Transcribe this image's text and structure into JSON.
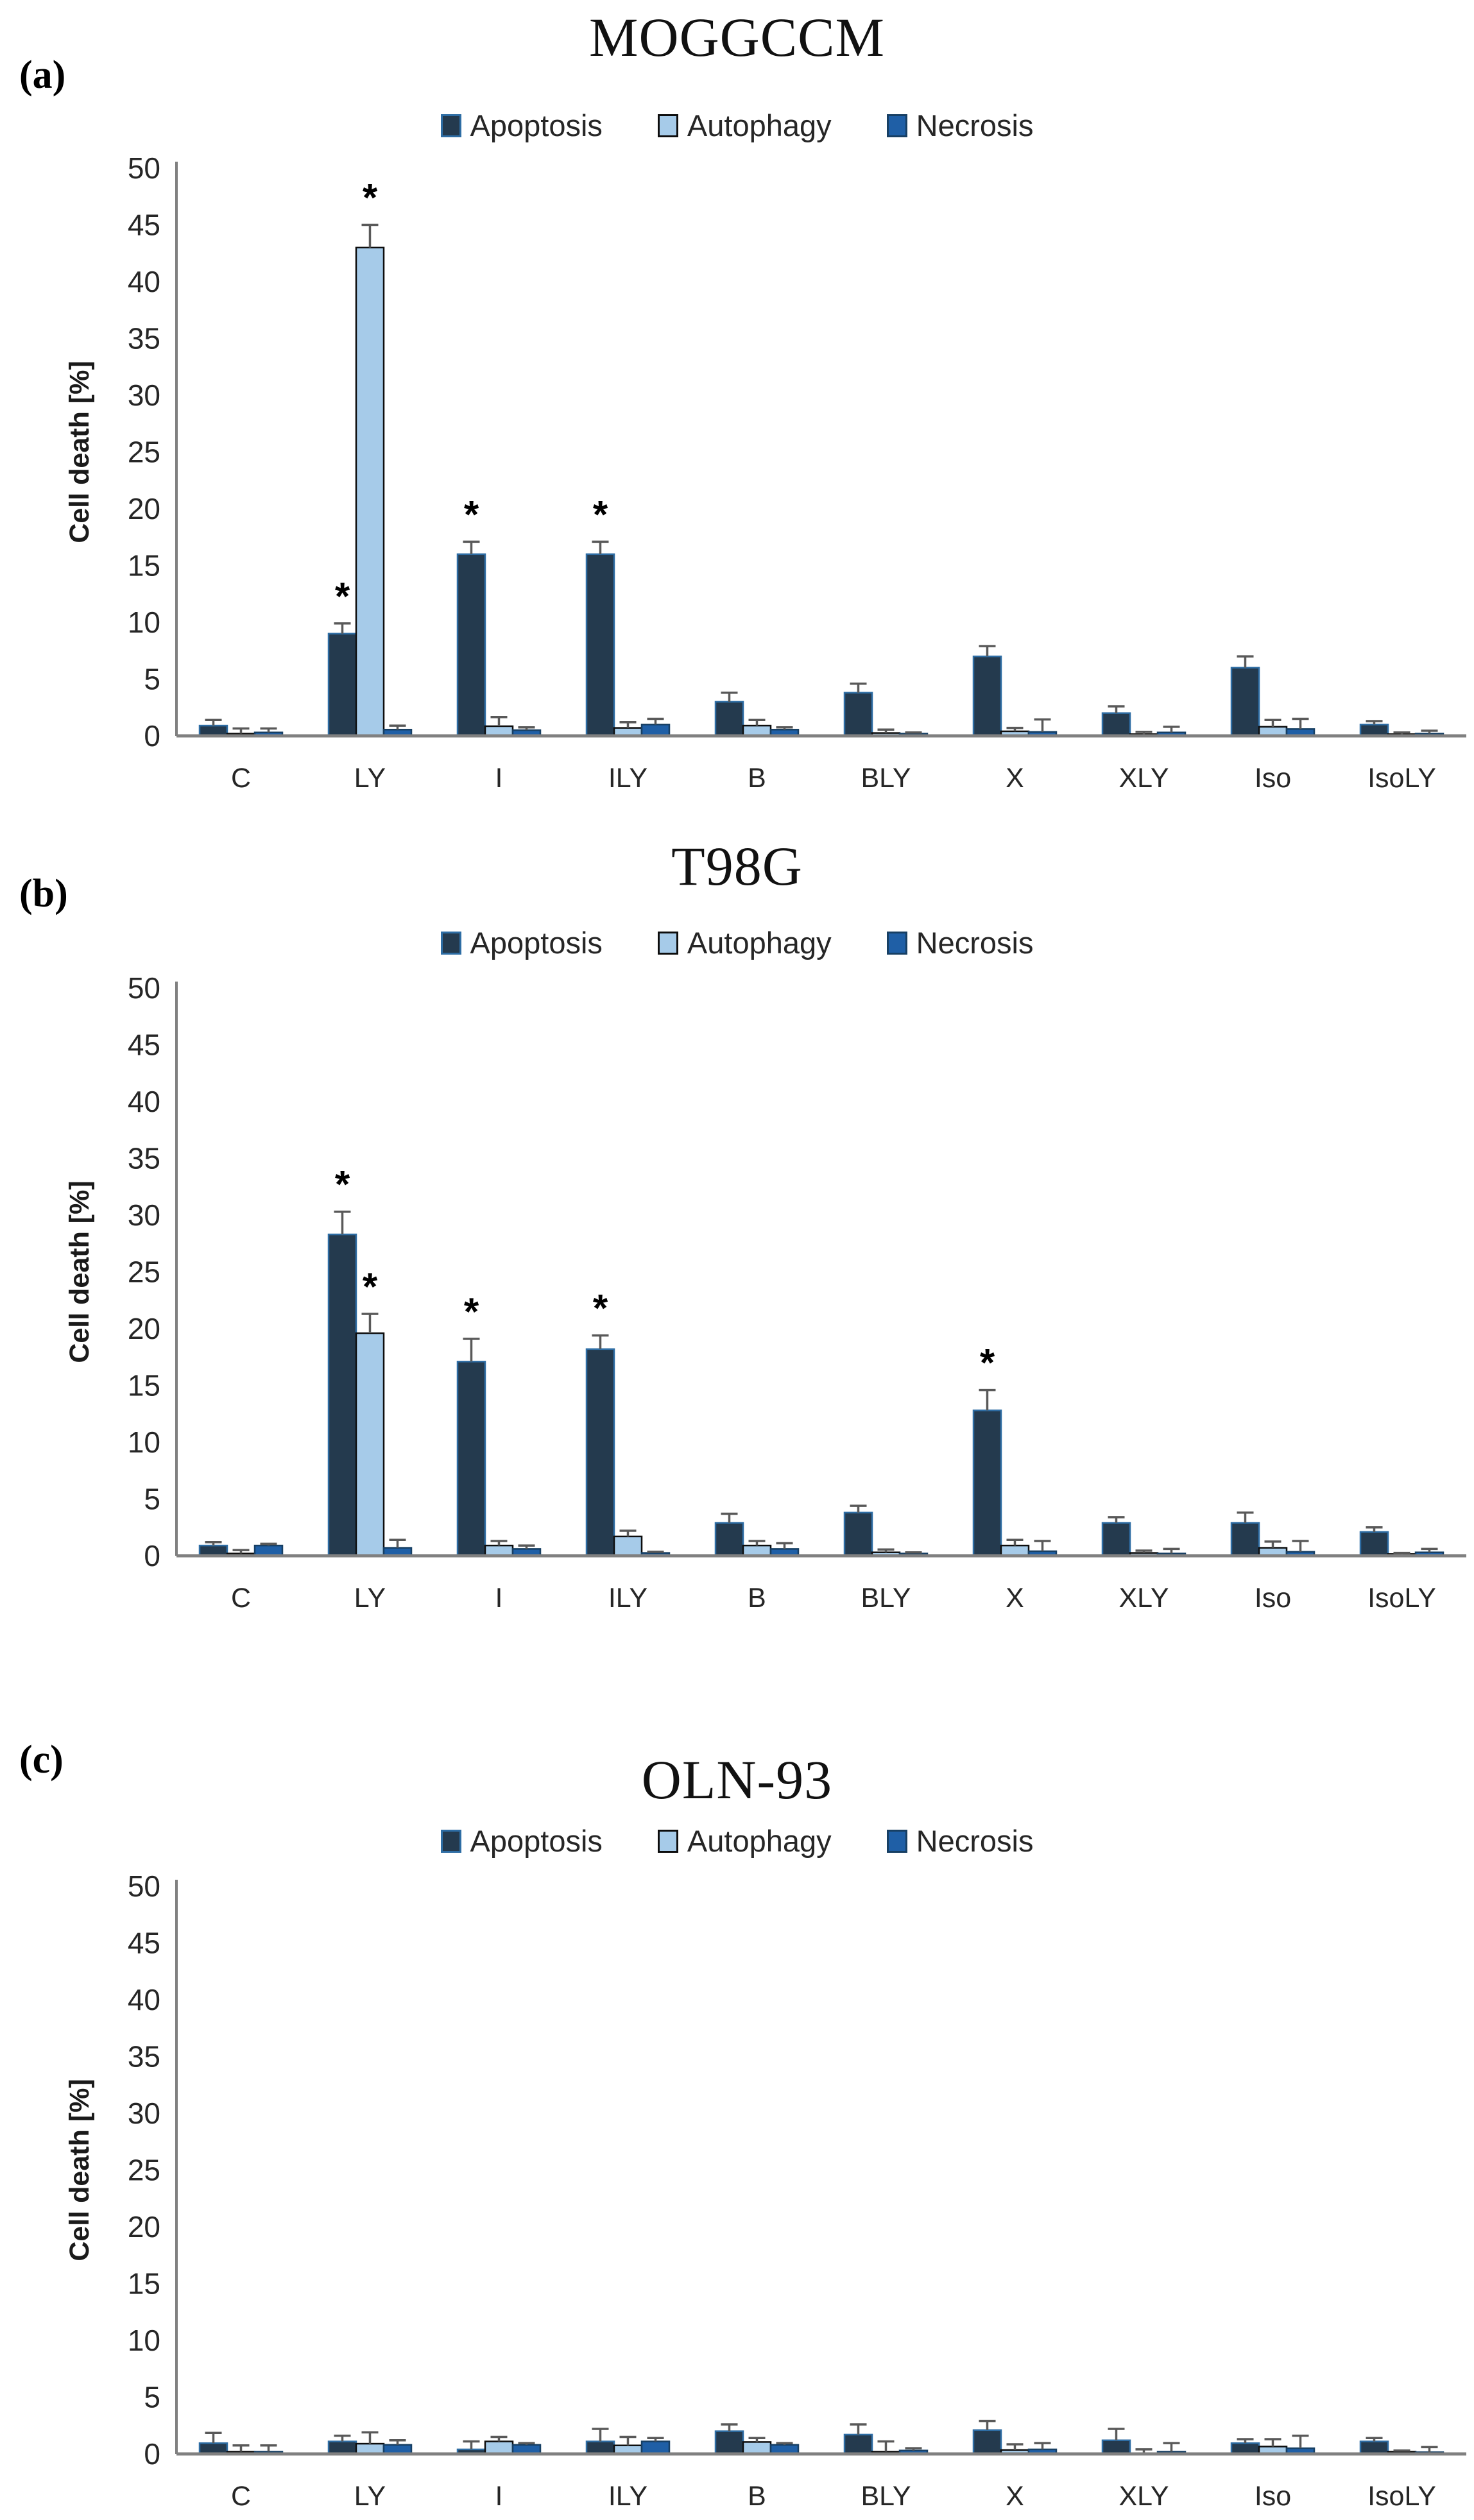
{
  "figure": {
    "kind": "three-panel bar figure",
    "significance_symbol": "*",
    "panel_labels": [
      "(a)",
      "(b)",
      "(c)"
    ]
  },
  "colors": {
    "apoptosis_fill": "#243a4e",
    "apoptosis_border": "#2e6da4",
    "autophagy_fill": "#a6cbe9",
    "autophagy_border": "#0d0d0d",
    "necrosis_fill": "#1f5fa6",
    "necrosis_border": "#173f63",
    "axis": "#808080",
    "error_bar": "#595959",
    "text": "#262626"
  },
  "chart_data": [
    {
      "panel_label": "(a)",
      "type": "bar",
      "title": "MOGGCCM",
      "ylabel": "Cell death [%]",
      "ylim": [
        0,
        50
      ],
      "ytick_step": 5,
      "yticks": [
        0,
        5,
        10,
        15,
        20,
        25,
        30,
        35,
        40,
        45,
        50
      ],
      "grid": false,
      "legend_position": "top-center",
      "categories": [
        "C",
        "LY",
        "I",
        "ILY",
        "B",
        "BLY",
        "X",
        "XLY",
        "Iso",
        "IsoLY"
      ],
      "series": [
        {
          "name": "Apoptosis",
          "color": "#243a4e",
          "values": [
            0.9,
            9,
            16,
            16,
            3,
            3.8,
            7,
            2,
            6,
            1
          ],
          "errors": [
            0.5,
            0.9,
            1.1,
            1.1,
            0.8,
            0.8,
            0.9,
            0.6,
            1.0,
            0.3
          ],
          "significant": [
            false,
            true,
            true,
            true,
            false,
            false,
            false,
            false,
            false,
            false
          ]
        },
        {
          "name": "Autophagy",
          "color": "#a6cbe9",
          "values": [
            0.2,
            43,
            0.85,
            0.7,
            0.9,
            0.25,
            0.4,
            0.15,
            0.8,
            0.15
          ],
          "errors": [
            0.45,
            2.0,
            0.8,
            0.5,
            0.5,
            0.3,
            0.3,
            0.2,
            0.6,
            0.15
          ],
          "significant": [
            false,
            true,
            false,
            false,
            false,
            false,
            false,
            false,
            false,
            false
          ]
        },
        {
          "name": "Necrosis",
          "color": "#1f5fa6",
          "values": [
            0.3,
            0.55,
            0.5,
            1.0,
            0.55,
            0.2,
            0.35,
            0.3,
            0.6,
            0.2
          ],
          "errors": [
            0.35,
            0.35,
            0.25,
            0.5,
            0.2,
            0.1,
            1.1,
            0.5,
            0.9,
            0.25
          ],
          "significant": [
            false,
            false,
            false,
            false,
            false,
            false,
            false,
            false,
            false,
            false
          ]
        }
      ]
    },
    {
      "panel_label": "(b)",
      "type": "bar",
      "title": "T98G",
      "ylabel": "Cell death [%]",
      "ylim": [
        0,
        50
      ],
      "ytick_step": 5,
      "yticks": [
        0,
        5,
        10,
        15,
        20,
        25,
        30,
        35,
        40,
        45,
        50
      ],
      "grid": false,
      "legend_position": "top-center",
      "categories": [
        "C",
        "LY",
        "I",
        "ILY",
        "B",
        "BLY",
        "X",
        "XLY",
        "Iso",
        "IsoLY"
      ],
      "series": [
        {
          "name": "Apoptosis",
          "color": "#243a4e",
          "values": [
            0.9,
            28.3,
            17.1,
            18.2,
            2.9,
            3.8,
            12.8,
            2.9,
            2.9,
            2.1
          ],
          "errors": [
            0.3,
            2.0,
            2.0,
            1.2,
            0.8,
            0.6,
            1.8,
            0.5,
            0.9,
            0.4
          ],
          "significant": [
            false,
            true,
            true,
            true,
            false,
            false,
            true,
            false,
            false,
            false
          ]
        },
        {
          "name": "Autophagy",
          "color": "#a6cbe9",
          "values": [
            0.2,
            19.6,
            0.9,
            1.7,
            0.9,
            0.3,
            0.9,
            0.25,
            0.7,
            0.15
          ],
          "errors": [
            0.3,
            1.7,
            0.4,
            0.5,
            0.4,
            0.25,
            0.5,
            0.2,
            0.55,
            0.1
          ],
          "significant": [
            false,
            true,
            false,
            false,
            false,
            false,
            false,
            false,
            false,
            false
          ]
        },
        {
          "name": "Necrosis",
          "color": "#1f5fa6",
          "values": [
            0.9,
            0.7,
            0.6,
            0.25,
            0.6,
            0.2,
            0.4,
            0.2,
            0.35,
            0.3
          ],
          "errors": [
            0.15,
            0.7,
            0.3,
            0.1,
            0.5,
            0.1,
            0.9,
            0.4,
            0.95,
            0.3
          ],
          "significant": [
            false,
            false,
            false,
            false,
            false,
            false,
            false,
            false,
            false,
            false
          ]
        }
      ]
    },
    {
      "panel_label": "(c)",
      "type": "bar",
      "title": "OLN-93",
      "ylabel": "Cell death [%]",
      "ylim": [
        0,
        50
      ],
      "ytick_step": 5,
      "yticks": [
        0,
        5,
        10,
        15,
        20,
        25,
        30,
        35,
        40,
        45,
        50
      ],
      "grid": false,
      "legend_position": "top-center",
      "categories": [
        "C",
        "LY",
        "I",
        "ILY",
        "B",
        "BLY",
        "X",
        "XLY",
        "Iso",
        "IsoLY"
      ],
      "series": [
        {
          "name": "Apoptosis",
          "color": "#243a4e",
          "values": [
            0.95,
            1.1,
            0.4,
            1.1,
            2.0,
            1.7,
            2.1,
            1.2,
            0.95,
            1.1
          ],
          "errors": [
            0.9,
            0.5,
            0.7,
            1.1,
            0.6,
            0.9,
            0.8,
            1.0,
            0.35,
            0.3
          ],
          "significant": [
            false,
            false,
            false,
            false,
            false,
            false,
            false,
            false,
            false,
            false
          ]
        },
        {
          "name": "Autophagy",
          "color": "#a6cbe9",
          "values": [
            0.2,
            0.9,
            1.1,
            0.75,
            1.05,
            0.2,
            0.35,
            0.05,
            0.65,
            0.2
          ],
          "errors": [
            0.55,
            1.0,
            0.4,
            0.75,
            0.35,
            0.9,
            0.5,
            0.35,
            0.65,
            0.1
          ],
          "significant": [
            false,
            false,
            false,
            false,
            false,
            false,
            false,
            false,
            false,
            false
          ]
        },
        {
          "name": "Necrosis",
          "color": "#1f5fa6",
          "values": [
            0.2,
            0.8,
            0.8,
            1.1,
            0.8,
            0.3,
            0.4,
            0.2,
            0.5,
            0.15
          ],
          "errors": [
            0.55,
            0.4,
            0.15,
            0.3,
            0.15,
            0.2,
            0.55,
            0.75,
            1.1,
            0.45
          ],
          "significant": [
            false,
            false,
            false,
            false,
            false,
            false,
            false,
            false,
            false,
            false
          ]
        }
      ]
    }
  ]
}
